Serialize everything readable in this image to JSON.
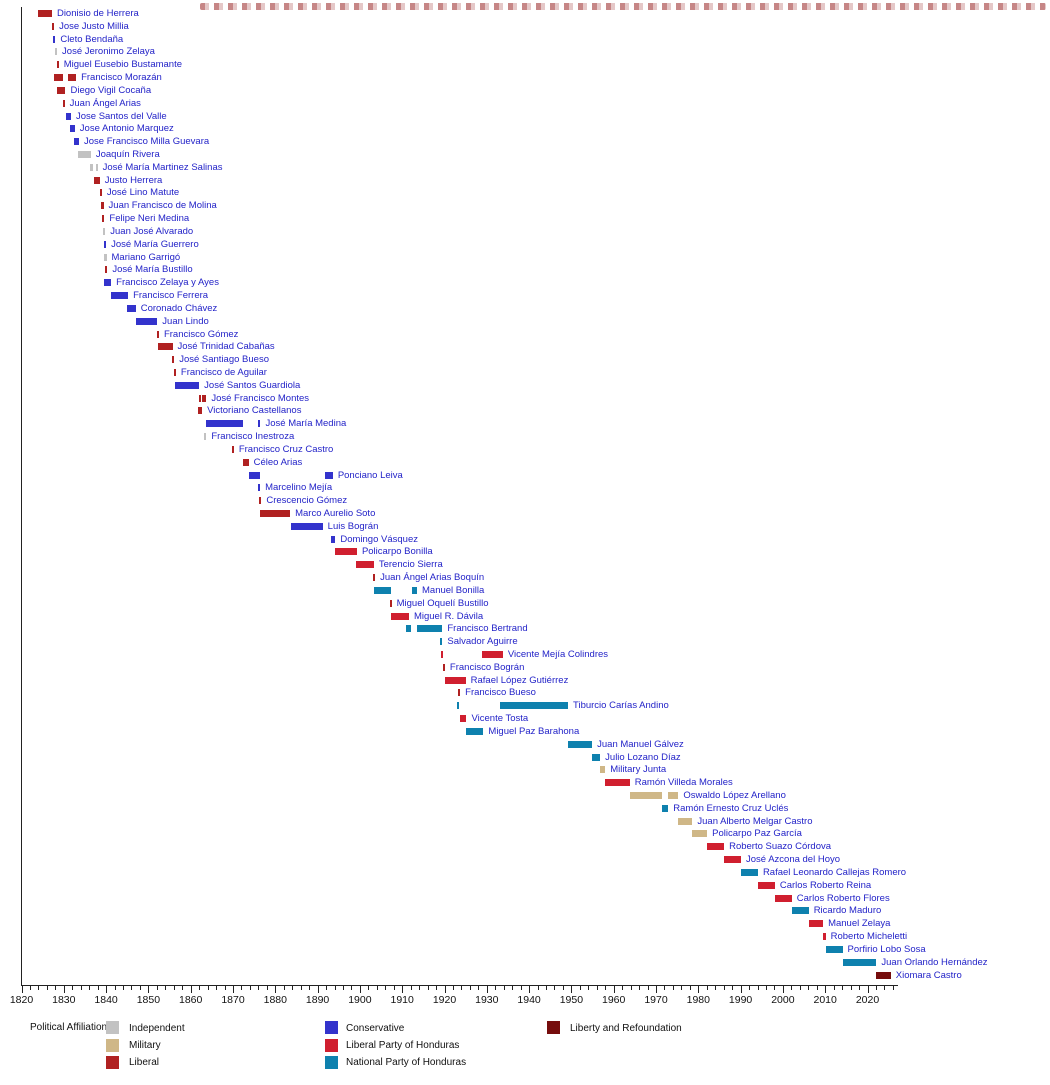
{
  "colors": {
    "independent": "#c2c2c2",
    "military": "#cfb787",
    "liberal": "#b02121",
    "conservative": "#3333cc",
    "liberal_party": "#d01f2f",
    "national": "#0e81ae",
    "libre": "#760d0d",
    "name_text": "#2323c8",
    "axis_text": "#111111",
    "watermark": "#982222"
  },
  "legend": {
    "title": "Political Affiliation:",
    "columns": [
      {
        "items": [
          {
            "label": "Independent",
            "key": "independent"
          },
          {
            "label": "Military",
            "key": "military"
          },
          {
            "label": "Liberal",
            "key": "liberal"
          }
        ]
      },
      {
        "items": [
          {
            "label": "Conservative",
            "key": "conservative"
          },
          {
            "label": "Liberal Party of Honduras",
            "key": "liberal_party"
          },
          {
            "label": "National Party of Honduras",
            "key": "national"
          }
        ]
      },
      {
        "items": [
          {
            "label": "Liberty and Refoundation",
            "key": "libre"
          }
        ]
      }
    ]
  },
  "chart_data": {
    "type": "bar",
    "subtype": "timeline-gantt",
    "xlabel": "",
    "ylabel": "",
    "x_axis": {
      "min": 1820,
      "max": 2026,
      "major_step": 10,
      "minor_step": 2,
      "tick_labels": [
        "1820",
        "1830",
        "1840",
        "1850",
        "1860",
        "1870",
        "1880",
        "1890",
        "1900",
        "1910",
        "1920",
        "1930",
        "1940",
        "1950",
        "1960",
        "1970",
        "1980",
        "1990",
        "2000",
        "2010",
        "2020"
      ]
    },
    "people": [
      {
        "name": "Dionisio de Herrera",
        "affiliation": "liberal",
        "terms": [
          [
            1824.0,
            1827.2
          ]
        ]
      },
      {
        "name": "Jose Justo Millia",
        "affiliation": "liberal",
        "terms": [
          [
            1827.2,
            1827.7
          ]
        ]
      },
      {
        "name": "Cleto Bendaña",
        "affiliation": "conservative",
        "terms": [
          [
            1827.5,
            1828.0
          ]
        ]
      },
      {
        "name": "José Jeronimo Zelaya",
        "affiliation": "independent",
        "terms": [
          [
            1827.9,
            1828.4
          ]
        ]
      },
      {
        "name": "Miguel Eusebio Bustamante",
        "affiliation": "liberal",
        "terms": [
          [
            1828.3,
            1828.8
          ]
        ]
      },
      {
        "name": "Francisco Morazán",
        "affiliation": "liberal",
        "terms": [
          [
            1827.6,
            1829.9
          ],
          [
            1831.1,
            1832.9
          ]
        ]
      },
      {
        "name": "Diego Vigil Cocaña",
        "affiliation": "liberal",
        "terms": [
          [
            1828.5,
            1830.4
          ]
        ]
      },
      {
        "name": "Juan Ángel Arias",
        "affiliation": "liberal",
        "terms": [
          [
            1829.7,
            1830.2
          ]
        ]
      },
      {
        "name": "Jose Santos del Valle",
        "affiliation": "conservative",
        "terms": [
          [
            1830.6,
            1831.7
          ]
        ]
      },
      {
        "name": "Jose Antonio Marquez",
        "affiliation": "conservative",
        "terms": [
          [
            1831.5,
            1832.6
          ]
        ]
      },
      {
        "name": "Jose Francisco Milla Guevara",
        "affiliation": "conservative",
        "terms": [
          [
            1832.5,
            1833.6
          ]
        ]
      },
      {
        "name": "Joaquín Rivera",
        "affiliation": "independent",
        "terms": [
          [
            1833.3,
            1836.4
          ]
        ]
      },
      {
        "name": "José María Martinez Salinas",
        "affiliation": "independent",
        "terms": [
          [
            1836.3,
            1836.8
          ],
          [
            1837.5,
            1838.0
          ]
        ]
      },
      {
        "name": "Justo Herrera",
        "affiliation": "liberal",
        "terms": [
          [
            1837.1,
            1838.5
          ]
        ]
      },
      {
        "name": "José Lino Matute",
        "affiliation": "liberal",
        "terms": [
          [
            1838.5,
            1839.0
          ]
        ]
      },
      {
        "name": "Juan Francisco de Molina",
        "affiliation": "liberal",
        "terms": [
          [
            1838.9,
            1839.4
          ]
        ]
      },
      {
        "name": "Felipe Neri Medina",
        "affiliation": "liberal",
        "terms": [
          [
            1839.1,
            1839.6
          ]
        ]
      },
      {
        "name": "Juan José Alvarado",
        "affiliation": "independent",
        "terms": [
          [
            1839.3,
            1839.8
          ]
        ]
      },
      {
        "name": "José María Guerrero",
        "affiliation": "conservative",
        "terms": [
          [
            1839.5,
            1840.0
          ]
        ]
      },
      {
        "name": "Mariano Garrigó",
        "affiliation": "independent",
        "terms": [
          [
            1839.6,
            1840.1
          ]
        ]
      },
      {
        "name": "José María Bustillo",
        "affiliation": "liberal",
        "terms": [
          [
            1839.8,
            1840.3
          ]
        ]
      },
      {
        "name": "Francisco Zelaya y Ayes",
        "affiliation": "conservative",
        "terms": [
          [
            1839.5,
            1841.2
          ]
        ]
      },
      {
        "name": "Francisco Ferrera",
        "affiliation": "conservative",
        "terms": [
          [
            1841.2,
            1845.2
          ]
        ]
      },
      {
        "name": "Coronado Chávez",
        "affiliation": "conservative",
        "terms": [
          [
            1844.9,
            1847.0
          ]
        ]
      },
      {
        "name": "Juan Lindo",
        "affiliation": "conservative",
        "terms": [
          [
            1847.0,
            1852.1
          ]
        ]
      },
      {
        "name": "Francisco Gómez",
        "affiliation": "liberal",
        "terms": [
          [
            1852.0,
            1852.5
          ]
        ]
      },
      {
        "name": "José Trinidad Cabañas",
        "affiliation": "liberal",
        "terms": [
          [
            1852.2,
            1855.7
          ]
        ]
      },
      {
        "name": "José Santiago Bueso",
        "affiliation": "liberal",
        "terms": [
          [
            1855.6,
            1856.1
          ]
        ]
      },
      {
        "name": "Francisco de Aguilar",
        "affiliation": "liberal",
        "terms": [
          [
            1856.0,
            1856.5
          ]
        ]
      },
      {
        "name": "José Santos Guardiola",
        "affiliation": "conservative",
        "terms": [
          [
            1856.2,
            1862.0
          ]
        ]
      },
      {
        "name": "José Francisco Montes",
        "affiliation": "liberal",
        "terms": [
          [
            1861.9,
            1862.3
          ],
          [
            1862.7,
            1863.7
          ]
        ]
      },
      {
        "name": "Victoriano Castellanos",
        "affiliation": "liberal",
        "terms": [
          [
            1861.7,
            1862.7
          ]
        ]
      },
      {
        "name": "José María Medina",
        "affiliation": "conservative",
        "terms": [
          [
            1863.5,
            1872.4
          ],
          [
            1876.0,
            1876.5
          ]
        ]
      },
      {
        "name": "Francisco Inestroza",
        "affiliation": "independent",
        "terms": [
          [
            1863.2,
            1863.7
          ]
        ]
      },
      {
        "name": "Francisco Cruz Castro",
        "affiliation": "liberal",
        "terms": [
          [
            1869.7,
            1870.2
          ]
        ]
      },
      {
        "name": "Céleo Arias",
        "affiliation": "liberal",
        "terms": [
          [
            1872.4,
            1873.7
          ]
        ]
      },
      {
        "name": "Ponciano Leiva",
        "affiliation": "conservative",
        "terms": [
          [
            1873.7,
            1876.4
          ],
          [
            1891.7,
            1893.6
          ]
        ]
      },
      {
        "name": "Marcelino Mejía",
        "affiliation": "conservative",
        "terms": [
          [
            1875.9,
            1876.4
          ]
        ]
      },
      {
        "name": "Crescencio Gómez",
        "affiliation": "liberal",
        "terms": [
          [
            1876.2,
            1876.7
          ]
        ]
      },
      {
        "name": "Marco Aurelio Soto",
        "affiliation": "liberal",
        "terms": [
          [
            1876.4,
            1883.5
          ]
        ]
      },
      {
        "name": "Luis Bográn",
        "affiliation": "conservative",
        "terms": [
          [
            1883.6,
            1891.2
          ]
        ]
      },
      {
        "name": "Domingo Vásquez",
        "affiliation": "conservative",
        "terms": [
          [
            1893.1,
            1894.2
          ]
        ]
      },
      {
        "name": "Policarpo Bonilla",
        "affiliation": "liberal_party",
        "terms": [
          [
            1894.2,
            1899.3
          ]
        ]
      },
      {
        "name": "Terencio Sierra",
        "affiliation": "liberal_party",
        "terms": [
          [
            1899.0,
            1903.3
          ]
        ]
      },
      {
        "name": "Juan Ángel Arias Boquín",
        "affiliation": "liberal",
        "terms": [
          [
            1903.1,
            1903.6
          ]
        ]
      },
      {
        "name": "Manuel Bonilla",
        "affiliation": "national",
        "terms": [
          [
            1903.4,
            1907.4
          ],
          [
            1912.3,
            1913.5
          ]
        ]
      },
      {
        "name": "Miguel Oquelí Bustillo",
        "affiliation": "liberal",
        "terms": [
          [
            1907.0,
            1907.5
          ]
        ]
      },
      {
        "name": "Miguel R. Dávila",
        "affiliation": "liberal_party",
        "terms": [
          [
            1907.3,
            1911.6
          ]
        ]
      },
      {
        "name": "Francisco Bertrand",
        "affiliation": "national",
        "terms": [
          [
            1911.0,
            1912.2
          ],
          [
            1913.6,
            1919.5
          ]
        ]
      },
      {
        "name": "Salvador Aguirre",
        "affiliation": "national",
        "terms": [
          [
            1919.0,
            1919.5
          ]
        ]
      },
      {
        "name": "Vicente Mejía Colindres",
        "affiliation": "liberal_party",
        "terms": [
          [
            1919.2,
            1919.7
          ],
          [
            1928.8,
            1933.8
          ]
        ]
      },
      {
        "name": "Francisco Bográn",
        "affiliation": "liberal",
        "terms": [
          [
            1919.6,
            1920.1
          ]
        ]
      },
      {
        "name": "Rafael López Gutiérrez",
        "affiliation": "liberal_party",
        "terms": [
          [
            1920.1,
            1925.0
          ]
        ]
      },
      {
        "name": "Francisco Bueso",
        "affiliation": "liberal",
        "terms": [
          [
            1923.2,
            1923.7
          ]
        ]
      },
      {
        "name": "Tiburcio Carías Andino",
        "affiliation": "national",
        "terms": [
          [
            1923.0,
            1923.5
          ],
          [
            1933.2,
            1949.2
          ]
        ]
      },
      {
        "name": "Vicente Tosta",
        "affiliation": "liberal_party",
        "terms": [
          [
            1923.7,
            1925.2
          ]
        ]
      },
      {
        "name": "Miguel Paz Barahona",
        "affiliation": "national",
        "terms": [
          [
            1925.2,
            1929.2
          ]
        ]
      },
      {
        "name": "Juan Manuel Gálvez",
        "affiliation": "national",
        "terms": [
          [
            1949.1,
            1954.9
          ]
        ]
      },
      {
        "name": "Julio Lozano Díaz",
        "affiliation": "national",
        "terms": [
          [
            1954.9,
            1956.8
          ]
        ]
      },
      {
        "name": "Military Junta",
        "affiliation": "military",
        "terms": [
          [
            1956.8,
            1958.0
          ]
        ]
      },
      {
        "name": "Ramón Villeda Morales",
        "affiliation": "liberal_party",
        "terms": [
          [
            1958.0,
            1963.8
          ]
        ]
      },
      {
        "name": "Oswaldo López Arellano",
        "affiliation": "military",
        "terms": [
          [
            1963.8,
            1971.4
          ],
          [
            1972.9,
            1975.3
          ]
        ]
      },
      {
        "name": "Ramón Ernesto Cruz Uclés",
        "affiliation": "national",
        "terms": [
          [
            1971.4,
            1972.9
          ]
        ]
      },
      {
        "name": "Juan Alberto Melgar Castro",
        "affiliation": "military",
        "terms": [
          [
            1975.3,
            1978.6
          ]
        ]
      },
      {
        "name": "Policarpo Paz García",
        "affiliation": "military",
        "terms": [
          [
            1978.6,
            1982.1
          ]
        ]
      },
      {
        "name": "Roberto Suazo Córdova",
        "affiliation": "liberal_party",
        "terms": [
          [
            1982.1,
            1986.1
          ]
        ]
      },
      {
        "name": "José Azcona del Hoyo",
        "affiliation": "liberal_party",
        "terms": [
          [
            1986.1,
            1990.1
          ]
        ]
      },
      {
        "name": "Rafael Leonardo Callejas Romero",
        "affiliation": "national",
        "terms": [
          [
            1990.1,
            1994.1
          ]
        ]
      },
      {
        "name": "Carlos Roberto Reina",
        "affiliation": "liberal_party",
        "terms": [
          [
            1994.1,
            1998.1
          ]
        ]
      },
      {
        "name": "Carlos Roberto Flores",
        "affiliation": "liberal_party",
        "terms": [
          [
            1998.1,
            2002.1
          ]
        ]
      },
      {
        "name": "Ricardo Maduro",
        "affiliation": "national",
        "terms": [
          [
            2002.1,
            2006.1
          ]
        ]
      },
      {
        "name": "Manuel Zelaya",
        "affiliation": "liberal_party",
        "terms": [
          [
            2006.1,
            2009.5
          ]
        ]
      },
      {
        "name": "Roberto Micheletti",
        "affiliation": "liberal_party",
        "terms": [
          [
            2009.5,
            2010.1
          ]
        ]
      },
      {
        "name": "Porfirio Lobo Sosa",
        "affiliation": "national",
        "terms": [
          [
            2010.1,
            2014.1
          ]
        ]
      },
      {
        "name": "Juan Orlando Hernández",
        "affiliation": "national",
        "terms": [
          [
            2014.1,
            2022.1
          ]
        ]
      },
      {
        "name": "Xiomara Castro",
        "affiliation": "libre",
        "terms": [
          [
            2022.1,
            2025.5
          ]
        ]
      }
    ]
  }
}
